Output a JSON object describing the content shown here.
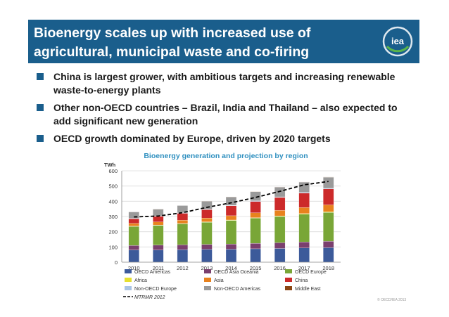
{
  "slide": {
    "title": "Bioenergy scales up with increased use of agricultural, municipal waste and co-firing",
    "logo_text": "iea",
    "bullets": [
      "China is largest grower, with ambitious targets and increasing renewable waste-to-energy plants",
      "Other non-OECD countries – Brazil, India and Thailand – also expected to add significant new generation",
      "OECD growth dominated by Europe, driven by 2020 targets"
    ],
    "copyright": "© OECD/IEA 2013",
    "colors": {
      "header": "#1a5e8c",
      "logo_accent": "#5ab54b",
      "chart_title": "#2e8fbf"
    }
  },
  "chart_data": {
    "type": "bar",
    "stacked": true,
    "title": "Bioenergy generation and projection by region",
    "ylabel": "TWh",
    "xlabel": "",
    "ylim": [
      0,
      600
    ],
    "yticks": [
      0,
      100,
      200,
      300,
      400,
      500,
      600
    ],
    "grid": true,
    "legend_position": "bottom",
    "categories": [
      "2010",
      "2011",
      "2012",
      "2013",
      "2014",
      "2015",
      "2016",
      "2017",
      "2018"
    ],
    "series": [
      {
        "name": "OECD Americas",
        "color": "#3c5a9a",
        "values": [
          80,
          80,
          82,
          84,
          85,
          88,
          90,
          93,
          95
        ]
      },
      {
        "name": "OECD Asia Oceania",
        "color": "#7a3f6e",
        "values": [
          30,
          32,
          32,
          33,
          34,
          36,
          38,
          40,
          42
        ]
      },
      {
        "name": "OECD Europe",
        "color": "#79a637",
        "values": [
          125,
          130,
          138,
          145,
          155,
          165,
          172,
          182,
          190
        ]
      },
      {
        "name": "Africa",
        "color": "#e6e030",
        "values": [
          2,
          2,
          2,
          3,
          3,
          3,
          4,
          4,
          4
        ]
      },
      {
        "name": "Asia",
        "color": "#e8821e",
        "values": [
          18,
          20,
          22,
          25,
          28,
          32,
          36,
          40,
          45
        ]
      },
      {
        "name": "China",
        "color": "#cc2a2a",
        "values": [
          30,
          37,
          45,
          55,
          65,
          75,
          85,
          95,
          105
        ]
      },
      {
        "name": "Non-OECD Europe",
        "color": "#a9c4e4",
        "values": [
          3,
          3,
          3,
          3,
          3,
          4,
          4,
          4,
          4
        ]
      },
      {
        "name": "Non-OECD Americas",
        "color": "#9a9a9a",
        "values": [
          42,
          44,
          48,
          52,
          55,
          60,
          64,
          68,
          73
        ]
      },
      {
        "name": "Middle East",
        "color": "#8b4513",
        "values": [
          1,
          1,
          1,
          1,
          1,
          1,
          1,
          1,
          1
        ]
      }
    ],
    "line_series": {
      "name": "MTRMR 2012",
      "color": "#000000",
      "style": "dashed",
      "values": [
        297,
        303,
        325,
        360,
        390,
        425,
        465,
        508,
        530
      ]
    },
    "legend": [
      "OECD Americas",
      "OECD Asia Oceania",
      "OECD Europe",
      "Africa",
      "Asia",
      "China",
      "Non-OECD Europe",
      "Non-OECD Americas",
      "Middle East",
      "MTRMR 2012"
    ]
  }
}
